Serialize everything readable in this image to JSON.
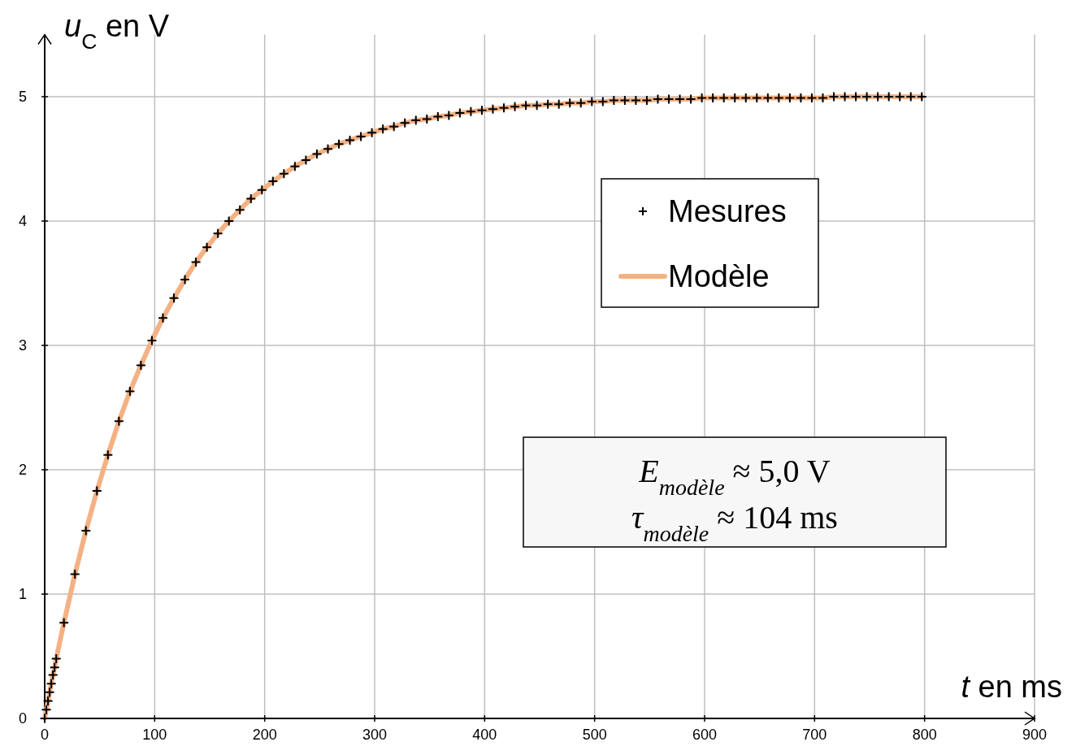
{
  "chart_data": {
    "type": "scatter",
    "xlabel": "t en ms",
    "ylabel": "u$_{C}$ en V",
    "xlim": [
      0,
      900
    ],
    "ylim": [
      0,
      5.5
    ],
    "xticks": [
      0,
      100,
      200,
      300,
      400,
      500,
      600,
      700,
      800,
      900
    ],
    "yticks": [
      0,
      1,
      2,
      3,
      4,
      5
    ],
    "grid": true,
    "legend": "top right",
    "annotations": [
      "E$_{modèle}$ ≈ 5,0 V",
      "τ$_{modèle}$ ≈ 104 ms"
    ],
    "series": [
      {
        "name": "Modèle",
        "type": "line",
        "color": "#f4b183",
        "line_style": "solid",
        "marker": "none",
        "x": [
          0,
          1.5,
          3,
          4.5,
          6,
          7.5,
          9,
          10.5,
          17.5,
          27.5,
          37.5,
          47.5,
          57.5,
          67.5,
          77.5,
          87.5,
          97.5,
          107.5,
          117.5,
          127.5,
          137.5,
          147.5,
          157.5,
          167.5,
          177.5,
          187.5,
          197.5,
          207.5,
          217.5,
          227.5,
          237.5,
          247.5,
          257.5,
          267.5,
          277.5,
          287.5,
          297.5,
          307.5,
          317.5,
          327.5,
          337.5,
          347.5,
          357.5,
          367.5,
          377.5,
          387.5,
          397.5,
          407.5,
          417.5,
          427.5,
          437.5,
          447.5,
          457.5,
          467.5,
          477.5,
          487.5,
          497.5,
          507.5,
          517.5,
          527.5,
          537.5,
          547.5,
          557.5,
          567.5,
          577.5,
          587.5,
          597.5,
          607.5,
          617.5,
          627.5,
          637.5,
          647.5,
          657.5,
          667.5,
          677.5,
          687.5,
          697.5,
          707.5,
          717.5,
          727.5,
          737.5,
          747.5,
          757.5,
          767.5,
          777.5,
          787.5,
          797.5
        ],
        "values": [
          0,
          0.07,
          0.14,
          0.21,
          0.28,
          0.35,
          0.41,
          0.48,
          0.77,
          1.16,
          1.51,
          1.83,
          2.12,
          2.39,
          2.63,
          2.84,
          3.04,
          3.22,
          3.38,
          3.53,
          3.67,
          3.79,
          3.9,
          4.0,
          4.09,
          4.18,
          4.25,
          4.32,
          4.38,
          4.44,
          4.49,
          4.54,
          4.58,
          4.62,
          4.65,
          4.68,
          4.71,
          4.74,
          4.76,
          4.79,
          4.81,
          4.82,
          4.84,
          4.85,
          4.87,
          4.88,
          4.89,
          4.9,
          4.91,
          4.92,
          4.93,
          4.93,
          4.94,
          4.94,
          4.95,
          4.95,
          4.96,
          4.96,
          4.97,
          4.97,
          4.97,
          4.97,
          4.98,
          4.98,
          4.98,
          4.98,
          4.99,
          4.99,
          4.99,
          4.99,
          4.99,
          4.99,
          4.99,
          4.99,
          4.99,
          4.99,
          4.99,
          4.99,
          5.0,
          5.0,
          5.0,
          5.0,
          5.0,
          5.0,
          5.0,
          5.0,
          5.0
        ]
      },
      {
        "name": "Mesures",
        "color": "#000000",
        "marker": "cross",
        "x": [
          0,
          1.5,
          3,
          4.5,
          6,
          7.5,
          9,
          10.5,
          17.5,
          27.5,
          37.5,
          47.5,
          57.5,
          67.5,
          77.5,
          87.5,
          97.5,
          107.5,
          117.5,
          127.5,
          137.5,
          147.5,
          157.5,
          167.5,
          177.5,
          187.5,
          197.5,
          207.5,
          217.5,
          227.5,
          237.5,
          247.5,
          257.5,
          267.5,
          277.5,
          287.5,
          297.5,
          307.5,
          317.5,
          327.5,
          337.5,
          347.5,
          357.5,
          367.5,
          377.5,
          387.5,
          397.5,
          407.5,
          417.5,
          427.5,
          437.5,
          447.5,
          457.5,
          467.5,
          477.5,
          487.5,
          497.5,
          507.5,
          517.5,
          527.5,
          537.5,
          547.5,
          557.5,
          567.5,
          577.5,
          587.5,
          597.5,
          607.5,
          617.5,
          627.5,
          637.5,
          647.5,
          657.5,
          667.5,
          677.5,
          687.5,
          697.5,
          707.5,
          717.5,
          727.5,
          737.5,
          747.5,
          757.5,
          767.5,
          777.5,
          787.5,
          797.5
        ],
        "values": [
          0,
          0.07,
          0.14,
          0.21,
          0.28,
          0.35,
          0.41,
          0.48,
          0.77,
          1.16,
          1.51,
          1.83,
          2.12,
          2.39,
          2.63,
          2.84,
          3.04,
          3.22,
          3.38,
          3.53,
          3.67,
          3.79,
          3.9,
          4.0,
          4.09,
          4.18,
          4.25,
          4.32,
          4.38,
          4.44,
          4.49,
          4.54,
          4.58,
          4.62,
          4.65,
          4.68,
          4.71,
          4.74,
          4.76,
          4.79,
          4.81,
          4.82,
          4.84,
          4.85,
          4.87,
          4.88,
          4.89,
          4.9,
          4.91,
          4.92,
          4.93,
          4.93,
          4.94,
          4.94,
          4.95,
          4.95,
          4.96,
          4.96,
          4.97,
          4.97,
          4.97,
          4.97,
          4.98,
          4.98,
          4.98,
          4.98,
          4.99,
          4.99,
          4.99,
          4.99,
          4.99,
          4.99,
          4.99,
          4.99,
          4.99,
          4.99,
          4.99,
          4.99,
          5.0,
          5.0,
          5.0,
          5.0,
          5.0,
          5.0,
          5.0,
          5.0,
          5.0
        ]
      }
    ]
  }
}
